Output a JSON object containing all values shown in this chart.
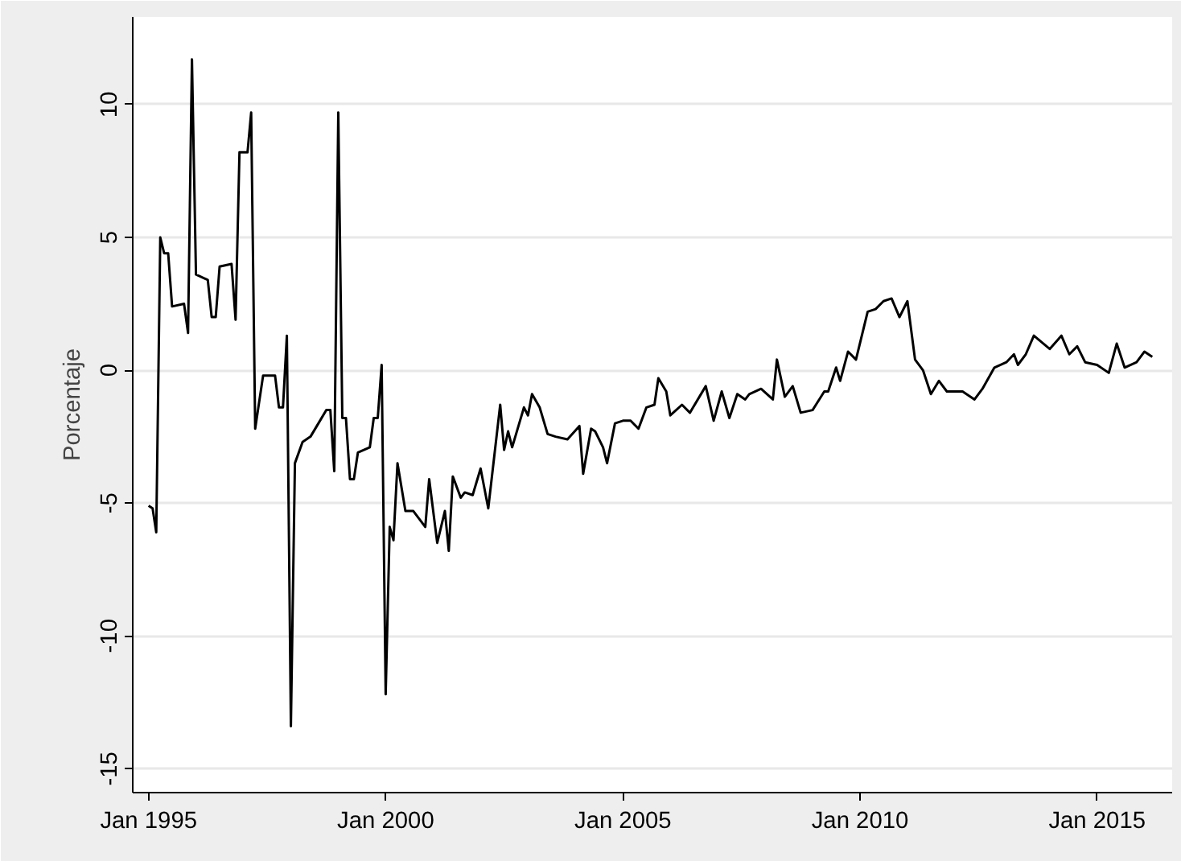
{
  "chart_data": {
    "type": "line",
    "ylabel": "Porcentaje",
    "x": [
      "1995-01",
      "1995-02",
      "1995-03",
      "1995-04",
      "1995-05",
      "1995-06",
      "1995-07",
      "1995-10",
      "1995-11",
      "1995-12",
      "1996-01",
      "1996-04",
      "1996-05",
      "1996-06",
      "1996-07",
      "1996-10",
      "1996-11",
      "1996-12",
      "1997-02",
      "1997-03",
      "1997-04",
      "1997-06",
      "1997-09",
      "1997-10",
      "1997-11",
      "1997-12",
      "1998-01",
      "1998-02",
      "1998-04",
      "1998-06",
      "1998-08",
      "1998-10",
      "1998-11",
      "1998-12",
      "1999-01",
      "1999-02",
      "1999-03",
      "1999-04",
      "1999-05",
      "1999-06",
      "1999-09",
      "1999-10",
      "1999-11",
      "1999-12",
      "2000-01",
      "2000-02",
      "2000-03",
      "2000-04",
      "2000-06",
      "2000-08",
      "2000-11",
      "2000-12",
      "2001-02",
      "2001-04",
      "2001-05",
      "2001-06",
      "2001-08",
      "2001-09",
      "2001-11",
      "2002-01",
      "2002-03",
      "2002-06",
      "2002-07",
      "2002-08",
      "2002-09",
      "2002-12",
      "2003-01",
      "2003-02",
      "2003-04",
      "2003-06",
      "2003-08",
      "2003-11",
      "2004-02",
      "2004-03",
      "2004-05",
      "2004-06",
      "2004-08",
      "2004-09",
      "2004-11",
      "2005-01",
      "2005-03",
      "2005-05",
      "2005-07",
      "2005-09",
      "2005-10",
      "2005-12",
      "2006-01",
      "2006-04",
      "2006-06",
      "2006-10",
      "2006-12",
      "2007-02",
      "2007-04",
      "2007-06",
      "2007-08",
      "2007-09",
      "2007-12",
      "2008-03",
      "2008-04",
      "2008-06",
      "2008-08",
      "2008-10",
      "2009-01",
      "2009-04",
      "2009-05",
      "2009-07",
      "2009-08",
      "2009-10",
      "2009-12",
      "2010-03",
      "2010-05",
      "2010-07",
      "2010-09",
      "2010-11",
      "2011-01",
      "2011-03",
      "2011-05",
      "2011-07",
      "2011-09",
      "2011-11",
      "2012-03",
      "2012-06",
      "2012-08",
      "2012-11",
      "2013-02",
      "2013-04",
      "2013-05",
      "2013-07",
      "2013-09",
      "2014-01",
      "2014-04",
      "2014-06",
      "2014-08",
      "2014-10",
      "2015-01",
      "2015-04",
      "2015-06",
      "2015-08",
      "2015-11",
      "2016-01",
      "2016-03"
    ],
    "series": [
      {
        "color": "#000000",
        "values": [
          -5.1,
          -5.2,
          -6.1,
          5.0,
          4.4,
          4.4,
          2.4,
          2.5,
          1.4,
          11.7,
          3.6,
          3.4,
          2.0,
          2.0,
          3.9,
          4.0,
          1.9,
          8.2,
          8.2,
          9.7,
          -2.2,
          -0.2,
          -0.2,
          -1.4,
          -1.4,
          1.3,
          -13.4,
          -3.5,
          -2.7,
          -2.5,
          -2.0,
          -1.5,
          -1.5,
          -3.8,
          9.7,
          -1.8,
          -1.8,
          -4.1,
          -4.1,
          -3.1,
          -2.9,
          -1.8,
          -1.8,
          0.2,
          -12.2,
          -5.9,
          -6.4,
          -3.5,
          -5.3,
          -5.3,
          -5.9,
          -4.1,
          -6.5,
          -5.3,
          -6.8,
          -4.0,
          -4.8,
          -4.6,
          -4.7,
          -3.7,
          -5.2,
          -1.3,
          -3.0,
          -2.3,
          -2.9,
          -1.4,
          -1.7,
          -0.9,
          -1.4,
          -2.4,
          -2.5,
          -2.6,
          -2.1,
          -3.9,
          -2.2,
          -2.3,
          -2.9,
          -3.5,
          -2.0,
          -1.9,
          -1.9,
          -2.2,
          -1.4,
          -1.3,
          -0.3,
          -0.8,
          -1.7,
          -1.3,
          -1.6,
          -0.6,
          -1.9,
          -0.8,
          -1.8,
          -0.9,
          -1.1,
          -0.9,
          -0.7,
          -1.1,
          0.4,
          -1.0,
          -0.6,
          -1.6,
          -1.5,
          -0.8,
          -0.8,
          0.1,
          -0.4,
          0.7,
          0.4,
          2.2,
          2.3,
          2.6,
          2.7,
          2.0,
          2.6,
          0.4,
          0.0,
          -0.9,
          -0.4,
          -0.8,
          -0.8,
          -1.1,
          -0.7,
          0.1,
          0.3,
          0.6,
          0.2,
          0.6,
          1.3,
          0.8,
          1.3,
          0.6,
          0.9,
          0.3,
          0.2,
          -0.1,
          1.0,
          0.1,
          0.3,
          0.7,
          0.5
        ]
      }
    ],
    "xlim": [
      "1994-09",
      "2016-08"
    ],
    "xticks": [
      {
        "value": "1995-01",
        "label": "Jan 1995"
      },
      {
        "value": "2000-01",
        "label": "Jan 2000"
      },
      {
        "value": "2005-01",
        "label": "Jan 2005"
      },
      {
        "value": "2010-01",
        "label": "Jan 2010"
      },
      {
        "value": "2015-01",
        "label": "Jan 2015"
      }
    ],
    "ylim": [
      -15.9,
      13.3
    ],
    "yticks": [
      -15,
      -10,
      -5,
      0,
      5,
      10
    ],
    "grid": "y",
    "line_style": "solid"
  }
}
